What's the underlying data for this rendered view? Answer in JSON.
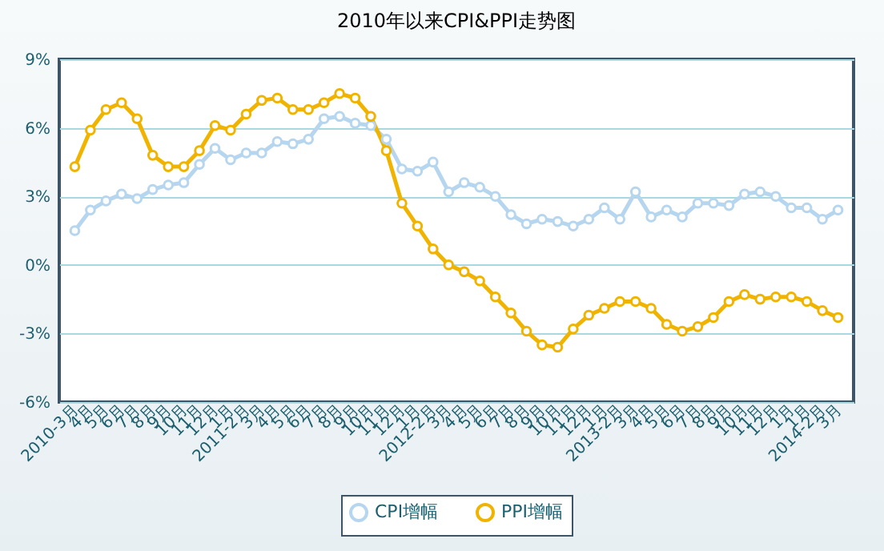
{
  "chart_data": {
    "type": "line",
    "title": "2010年以来CPI&PPI走势图",
    "categories": [
      "2010-3月",
      "4月",
      "5月",
      "6月",
      "7月",
      "8月",
      "9月",
      "10月",
      "11月",
      "12月",
      "1月",
      "2011-2月",
      "3月",
      "4月",
      "5月",
      "6月",
      "7月",
      "8月",
      "9月",
      "10月",
      "11月",
      "12月",
      "1月",
      "2012-2月",
      "3月",
      "4月",
      "5月",
      "6月",
      "7月",
      "8月",
      "9月",
      "10月",
      "11月",
      "12月",
      "1月",
      "2013-2月",
      "3月",
      "4月",
      "5月",
      "6月",
      "7月",
      "8月",
      "9月",
      "10月",
      "11月",
      "12月",
      "1月",
      "1月",
      "2014-2月",
      "3月"
    ],
    "series": [
      {
        "name": "CPI增幅",
        "color": "#b5d6ee",
        "values": [
          1.5,
          2.4,
          2.8,
          3.1,
          2.9,
          3.3,
          3.5,
          3.6,
          4.4,
          5.1,
          4.6,
          4.9,
          4.9,
          5.4,
          5.3,
          5.5,
          6.4,
          6.5,
          6.2,
          6.1,
          5.5,
          4.2,
          4.1,
          4.5,
          3.2,
          3.6,
          3.4,
          3.0,
          2.2,
          1.8,
          2.0,
          1.9,
          1.7,
          2.0,
          2.5,
          2.0,
          3.2,
          2.1,
          2.4,
          2.1,
          2.7,
          2.7,
          2.6,
          3.1,
          3.2,
          3.0,
          2.5,
          2.5,
          2.0,
          2.4
        ]
      },
      {
        "name": "PPI增幅",
        "color": "#f0b400",
        "values": [
          4.3,
          5.9,
          6.8,
          7.1,
          6.4,
          4.8,
          4.3,
          4.3,
          5.0,
          6.1,
          5.9,
          6.6,
          7.2,
          7.3,
          6.8,
          6.8,
          7.1,
          7.5,
          7.3,
          6.5,
          5.0,
          2.7,
          1.7,
          0.7,
          0.0,
          -0.3,
          -0.7,
          -1.4,
          -2.1,
          -2.9,
          -3.5,
          -3.6,
          -2.8,
          -2.2,
          -1.9,
          -1.6,
          -1.6,
          -1.9,
          -2.6,
          -2.9,
          -2.7,
          -2.3,
          -1.6,
          -1.3,
          -1.5,
          -1.4,
          -1.4,
          -1.6,
          -2.0,
          -2.3
        ]
      }
    ],
    "ylim": [
      -6,
      9
    ],
    "yticks": [
      {
        "value": -6,
        "label": "-6%"
      },
      {
        "value": -3,
        "label": "-3%"
      },
      {
        "value": 0,
        "label": "0%"
      },
      {
        "value": 3,
        "label": "3%"
      },
      {
        "value": 6,
        "label": "6%"
      },
      {
        "value": 9,
        "label": "9%"
      }
    ],
    "grid": "y",
    "legend": "bottom",
    "marker": "circle",
    "line_style": "solid"
  }
}
